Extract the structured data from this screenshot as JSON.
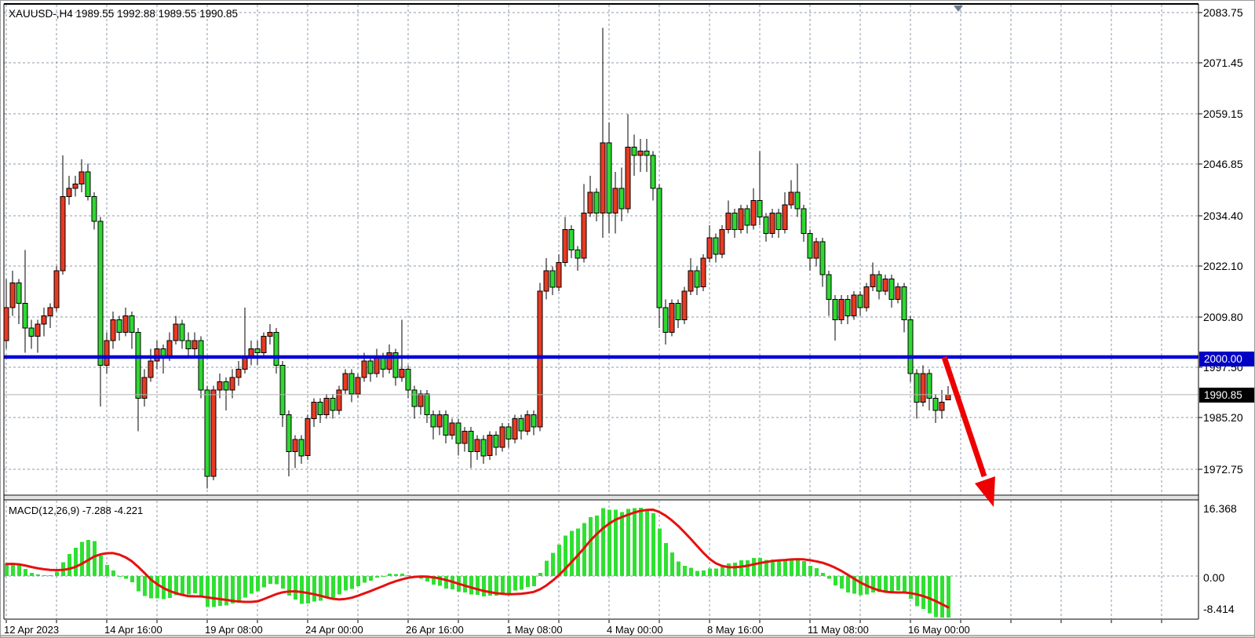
{
  "header": {
    "title": "XAUUSD-,H4  1989.55 1992.88 1989.55 1990.85"
  },
  "indicator_pane": {
    "label": "MACD(12,26,9) -7.288 -4.221",
    "name": "MACD",
    "params": "12,26,9",
    "shown_values": [
      -7.288,
      -4.221
    ],
    "axis_labels": [
      "16.368",
      "0.00",
      "-8.414"
    ]
  },
  "chart_data": {
    "type": "candlestick",
    "symbol": "XAUUSD-",
    "timeframe": "H4",
    "title": "XAUUSD-,H4  1989.55 1992.88 1989.55 1990.85",
    "last_candle_ohlc": {
      "open": "1989.55",
      "high": "1992.88",
      "low": "1989.55",
      "close": "1990.85"
    },
    "y_axis": {
      "labels": [
        "2083.75",
        "2071.45",
        "2059.15",
        "2046.85",
        "2034.40",
        "2022.10",
        "2009.80",
        "1997.50",
        "1985.20",
        "1972.75"
      ]
    },
    "x_axis": {
      "labels": [
        "12 Apr 2023",
        "14 Apr 16:00",
        "19 Apr 08:00",
        "24 Apr 00:00",
        "26 Apr 16:00",
        "1 May 08:00",
        "4 May 00:00",
        "8 May 16:00",
        "11 May 08:00",
        "16 May 00:00"
      ]
    },
    "horizontal_line": {
      "price": 2000.0,
      "label": "2000.00"
    },
    "last_price": {
      "value": 1990.85,
      "label": "1990.85"
    },
    "colors": {
      "bull": "#e83a22",
      "bear": "#2fd932",
      "candle_border": "#000000",
      "grid": "#8c9aa9",
      "hline": "#0000d8",
      "hline_box": "#0000c4",
      "last_price_line": "#b3b3b3",
      "macd_histogram": "#2fe032",
      "macd_signal": "#e80f0f",
      "arrow": "#ee0000",
      "shift_marker": "#6a7c8e"
    },
    "candles": [
      [
        2004,
        2019,
        2002,
        2012
      ],
      [
        2012,
        2021,
        2010,
        2018
      ],
      [
        2018,
        2019,
        2008,
        2013
      ],
      [
        2013,
        2026,
        2001,
        2007
      ],
      [
        2007,
        2009,
        2002,
        2005
      ],
      [
        2005,
        2009,
        2001,
        2008
      ],
      [
        2008,
        2012,
        2005,
        2010
      ],
      [
        2010,
        2013,
        2007,
        2012
      ],
      [
        2012,
        2022,
        2011,
        2021
      ],
      [
        2021,
        2049,
        2020,
        2039
      ],
      [
        2039,
        2044,
        2037,
        2041
      ],
      [
        2041,
        2044,
        2039,
        2042
      ],
      [
        2042,
        2048,
        2040,
        2045
      ],
      [
        2045,
        2047,
        2038,
        2039
      ],
      [
        2039,
        2040,
        2031,
        2033
      ],
      [
        2033,
        2034,
        1988,
        1998
      ],
      [
        1998,
        2006,
        1996,
        2004
      ],
      [
        2004,
        2011,
        2002,
        2009
      ],
      [
        2009,
        2010,
        2004,
        2006
      ],
      [
        2006,
        2012,
        2005,
        2010
      ],
      [
        2010,
        2011,
        2002,
        2006
      ],
      [
        2006,
        2007,
        1982,
        1990
      ],
      [
        1990,
        1997,
        1988,
        1995
      ],
      [
        1995,
        2002,
        1994,
        1999
      ],
      [
        1999,
        2004,
        1997,
        2002
      ],
      [
        2002,
        2003,
        1996,
        2000
      ],
      [
        2000,
        2006,
        1999,
        2004
      ],
      [
        2004,
        2010,
        2003,
        2008
      ],
      [
        2008,
        2009,
        2002,
        2004
      ],
      [
        2004,
        2006,
        2000,
        2002
      ],
      [
        2002,
        2006,
        2000,
        2004
      ],
      [
        2004,
        2005,
        1990,
        1992
      ],
      [
        1992,
        1993,
        1968,
        1971
      ],
      [
        1971,
        1993,
        1970,
        1992
      ],
      [
        1992,
        1996,
        1990,
        1994
      ],
      [
        1994,
        1995,
        1987,
        1992
      ],
      [
        1992,
        1997,
        1990,
        1995
      ],
      [
        1995,
        1999,
        1993,
        1997
      ],
      [
        1997,
        2012,
        1996,
        2000
      ],
      [
        2000,
        2004,
        1998,
        2002
      ],
      [
        2002,
        2004,
        1998,
        2001
      ],
      [
        2001,
        2006,
        2000,
        2005
      ],
      [
        2005,
        2008,
        2003,
        2006
      ],
      [
        2006,
        2007,
        1996,
        1998
      ],
      [
        1998,
        1999,
        1983,
        1986
      ],
      [
        1986,
        1987,
        1971,
        1977
      ],
      [
        1977,
        1981,
        1973,
        1980
      ],
      [
        1980,
        1981,
        1974,
        1976
      ],
      [
        1976,
        1986,
        1975,
        1985
      ],
      [
        1985,
        1990,
        1983,
        1989
      ],
      [
        1989,
        1990,
        1984,
        1986
      ],
      [
        1986,
        1991,
        1985,
        1990
      ],
      [
        1990,
        1991,
        1985,
        1987
      ],
      [
        1987,
        1993,
        1986,
        1992
      ],
      [
        1992,
        1997,
        1991,
        1996
      ],
      [
        1996,
        1997,
        1989,
        1991
      ],
      [
        1991,
        1996,
        1990,
        1995
      ],
      [
        1995,
        2001,
        1994,
        1999
      ],
      [
        1999,
        2000,
        1994,
        1996
      ],
      [
        1996,
        2002,
        1995,
        2000
      ],
      [
        2000,
        2001,
        1995,
        1997
      ],
      [
        1997,
        2003,
        1996,
        2001
      ],
      [
        2001,
        2002,
        1993,
        1995
      ],
      [
        1995,
        2009,
        1994,
        1997
      ],
      [
        1997,
        1998,
        1990,
        1992
      ],
      [
        1992,
        1993,
        1985,
        1988
      ],
      [
        1988,
        1992,
        1986,
        1991
      ],
      [
        1991,
        1992,
        1984,
        1986
      ],
      [
        1986,
        1987,
        1980,
        1983
      ],
      [
        1983,
        1987,
        1981,
        1986
      ],
      [
        1986,
        1987,
        1979,
        1981
      ],
      [
        1981,
        1985,
        1980,
        1984
      ],
      [
        1984,
        1985,
        1976,
        1979
      ],
      [
        1979,
        1983,
        1977,
        1982
      ],
      [
        1982,
        1983,
        1973,
        1977
      ],
      [
        1977,
        1981,
        1975,
        1980
      ],
      [
        1980,
        1981,
        1974,
        1976
      ],
      [
        1976,
        1982,
        1975,
        1981
      ],
      [
        1981,
        1982,
        1976,
        1978
      ],
      [
        1978,
        1984,
        1977,
        1983
      ],
      [
        1983,
        1984,
        1978,
        1980
      ],
      [
        1980,
        1986,
        1979,
        1985
      ],
      [
        1985,
        1986,
        1980,
        1982
      ],
      [
        1982,
        1987,
        1981,
        1986
      ],
      [
        1986,
        1987,
        1981,
        1983
      ],
      [
        1983,
        2018,
        1982,
        2016
      ],
      [
        2016,
        2024,
        2014,
        2021
      ],
      [
        2021,
        2022,
        2015,
        2017
      ],
      [
        2017,
        2025,
        2016,
        2023
      ],
      [
        2023,
        2034,
        2022,
        2031
      ],
      [
        2031,
        2032,
        2024,
        2026
      ],
      [
        2026,
        2027,
        2021,
        2024
      ],
      [
        2024,
        2042,
        2023,
        2035
      ],
      [
        2035,
        2044,
        2034,
        2040
      ],
      [
        2040,
        2041,
        2033,
        2035
      ],
      [
        2035,
        2080,
        2029,
        2052
      ],
      [
        2052,
        2057,
        2030,
        2035
      ],
      [
        2035,
        2045,
        2030,
        2041
      ],
      [
        2041,
        2046,
        2033,
        2036
      ],
      [
        2036,
        2059,
        2035,
        2051
      ],
      [
        2051,
        2054,
        2044,
        2049
      ],
      [
        2049,
        2053,
        2045,
        2050
      ],
      [
        2050,
        2053,
        2045,
        2049
      ],
      [
        2049,
        2050,
        2038,
        2041
      ],
      [
        2041,
        2042,
        2007,
        2012
      ],
      [
        2012,
        2014,
        2003,
        2006
      ],
      [
        2006,
        2014,
        2005,
        2013
      ],
      [
        2013,
        2014,
        2007,
        2009
      ],
      [
        2009,
        2017,
        2008,
        2016
      ],
      [
        2016,
        2024,
        2015,
        2021
      ],
      [
        2021,
        2022,
        2015,
        2017
      ],
      [
        2017,
        2025,
        2016,
        2024
      ],
      [
        2024,
        2032,
        2023,
        2029
      ],
      [
        2029,
        2030,
        2023,
        2025
      ],
      [
        2025,
        2032,
        2024,
        2031
      ],
      [
        2031,
        2038,
        2030,
        2035
      ],
      [
        2035,
        2036,
        2029,
        2031
      ],
      [
        2031,
        2037,
        2030,
        2036
      ],
      [
        2036,
        2037,
        2030,
        2032
      ],
      [
        2032,
        2041,
        2031,
        2038
      ],
      [
        2038,
        2050,
        2032,
        2034
      ],
      [
        2034,
        2035,
        2028,
        2030
      ],
      [
        2030,
        2036,
        2029,
        2035
      ],
      [
        2035,
        2036,
        2029,
        2031
      ],
      [
        2031,
        2040,
        2030,
        2037
      ],
      [
        2037,
        2043,
        2036,
        2040
      ],
      [
        2040,
        2047,
        2034,
        2036
      ],
      [
        2036,
        2037,
        2028,
        2030
      ],
      [
        2030,
        2031,
        2021,
        2024
      ],
      [
        2024,
        2029,
        2022,
        2028
      ],
      [
        2028,
        2029,
        2017,
        2020
      ],
      [
        2020,
        2021,
        2010,
        2014
      ],
      [
        2014,
        2015,
        2004,
        2009
      ],
      [
        2009,
        2015,
        2008,
        2014
      ],
      [
        2014,
        2015,
        2008,
        2010
      ],
      [
        2010,
        2016,
        2009,
        2015
      ],
      [
        2015,
        2016,
        2010,
        2012
      ],
      [
        2012,
        2018,
        2011,
        2017
      ],
      [
        2017,
        2023,
        2016,
        2020
      ],
      [
        2020,
        2021,
        2014,
        2016
      ],
      [
        2016,
        2020,
        2015,
        2019
      ],
      [
        2019,
        2020,
        2012,
        2014
      ],
      [
        2014,
        2018,
        2013,
        2017
      ],
      [
        2017,
        2018,
        2006,
        2009
      ],
      [
        2009,
        2010,
        1994,
        1996
      ],
      [
        1996,
        1997,
        1985,
        1989
      ],
      [
        1989,
        1998,
        1988,
        1996
      ],
      [
        1996,
        1997,
        1987,
        1990
      ],
      [
        1990,
        1991,
        1984,
        1987
      ],
      [
        1987,
        1992,
        1985,
        1989
      ],
      [
        1989.55,
        1992.88,
        1989.55,
        1990.85
      ]
    ]
  }
}
